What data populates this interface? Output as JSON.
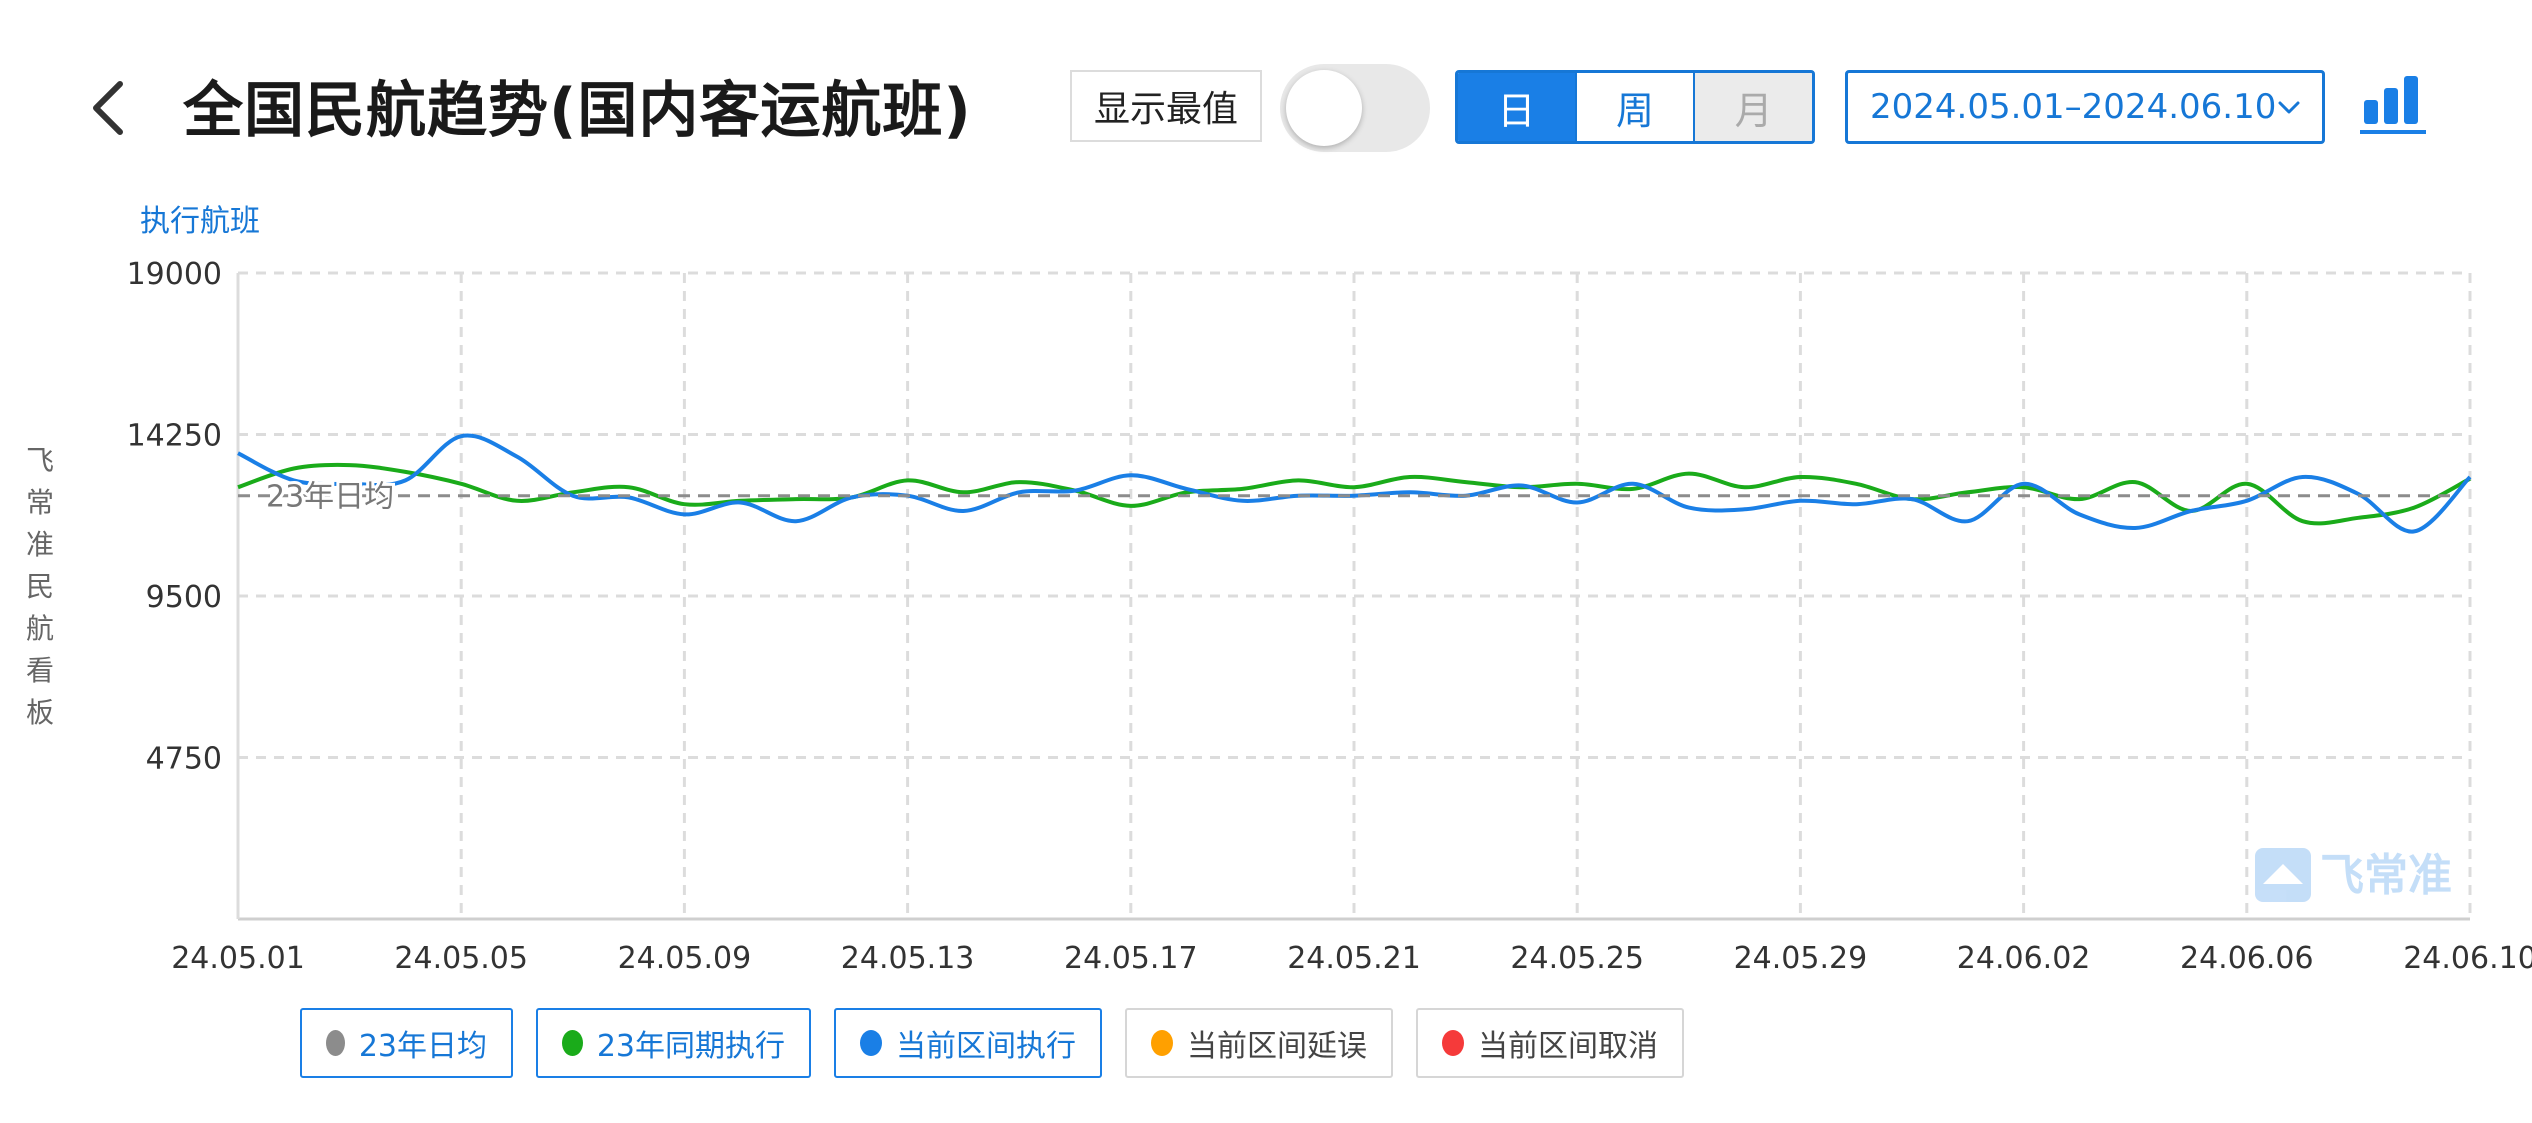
{
  "header": {
    "title": "全国民航趋势(国内客运航班)",
    "toggle_label": "显示最值",
    "toggle_on": false,
    "granularity": [
      "日",
      "周",
      "月"
    ],
    "granularity_selected": "日",
    "date_range": "2024.05.01–2024.06.10"
  },
  "side_label": [
    "飞",
    "常",
    "准",
    "民",
    "航",
    "看",
    "板"
  ],
  "watermark": "飞常准",
  "colors": {
    "accent": "#1677d6",
    "green": "#1aab1a",
    "blue": "#1a7fe6",
    "gray": "#8c8c8c",
    "orange": "#ffa000",
    "red": "#f53a3a"
  },
  "legend": [
    {
      "label": "23年日均",
      "color": "#8c8c8c",
      "active": true
    },
    {
      "label": "23年同期执行",
      "color": "#1aab1a",
      "active": true
    },
    {
      "label": "当前区间执行",
      "color": "#1a7fe6",
      "active": true
    },
    {
      "label": "当前区间延误",
      "color": "#ffa000",
      "active": false
    },
    {
      "label": "当前区间取消",
      "color": "#f53a3a",
      "active": false
    }
  ],
  "chart_data": {
    "type": "line",
    "ylabel": "执行航班",
    "ylim": [
      0,
      19000
    ],
    "yticks": [
      4750,
      9500,
      14250,
      19000
    ],
    "x_tick_labels": [
      "24.05.01",
      "24.05.05",
      "24.05.09",
      "24.05.13",
      "24.05.17",
      "24.05.21",
      "24.05.25",
      "24.05.29",
      "24.06.02",
      "24.06.06",
      "24.06.10"
    ],
    "x": [
      "24.05.01",
      "24.05.02",
      "24.05.03",
      "24.05.04",
      "24.05.05",
      "24.05.06",
      "24.05.07",
      "24.05.08",
      "24.05.09",
      "24.05.10",
      "24.05.11",
      "24.05.12",
      "24.05.13",
      "24.05.14",
      "24.05.15",
      "24.05.16",
      "24.05.17",
      "24.05.18",
      "24.05.19",
      "24.05.20",
      "24.05.21",
      "24.05.22",
      "24.05.23",
      "24.05.24",
      "24.05.25",
      "24.05.26",
      "24.05.27",
      "24.05.28",
      "24.05.29",
      "24.05.30",
      "24.05.31",
      "24.06.01",
      "24.06.02",
      "24.06.03",
      "24.06.04",
      "24.06.05",
      "24.06.06",
      "24.06.07",
      "24.06.08",
      "24.06.09",
      "24.06.10"
    ],
    "grid": true,
    "reference_line": {
      "name": "23年日均",
      "value": 12450
    },
    "series": [
      {
        "name": "23年同期执行",
        "values": [
          12700,
          13250,
          13350,
          13150,
          12800,
          12300,
          12550,
          12700,
          12200,
          12300,
          12350,
          12400,
          12900,
          12550,
          12850,
          12600,
          12150,
          12550,
          12650,
          12900,
          12700,
          13000,
          12850,
          12700,
          12800,
          12650,
          13100,
          12700,
          13000,
          12800,
          12350,
          12550,
          12700,
          12350,
          12850,
          12000,
          12800,
          11700,
          11800,
          12100,
          12950
        ]
      },
      {
        "name": "当前区间执行",
        "values": [
          13700,
          12900,
          12800,
          12900,
          14200,
          13600,
          12450,
          12400,
          11900,
          12250,
          11700,
          12400,
          12450,
          12000,
          12550,
          12600,
          13050,
          12650,
          12300,
          12450,
          12450,
          12550,
          12450,
          12750,
          12250,
          12800,
          12100,
          12050,
          12300,
          12200,
          12350,
          11700,
          12800,
          11900,
          11500,
          12000,
          12300,
          13000,
          12500,
          11400,
          13000
        ]
      }
    ]
  }
}
